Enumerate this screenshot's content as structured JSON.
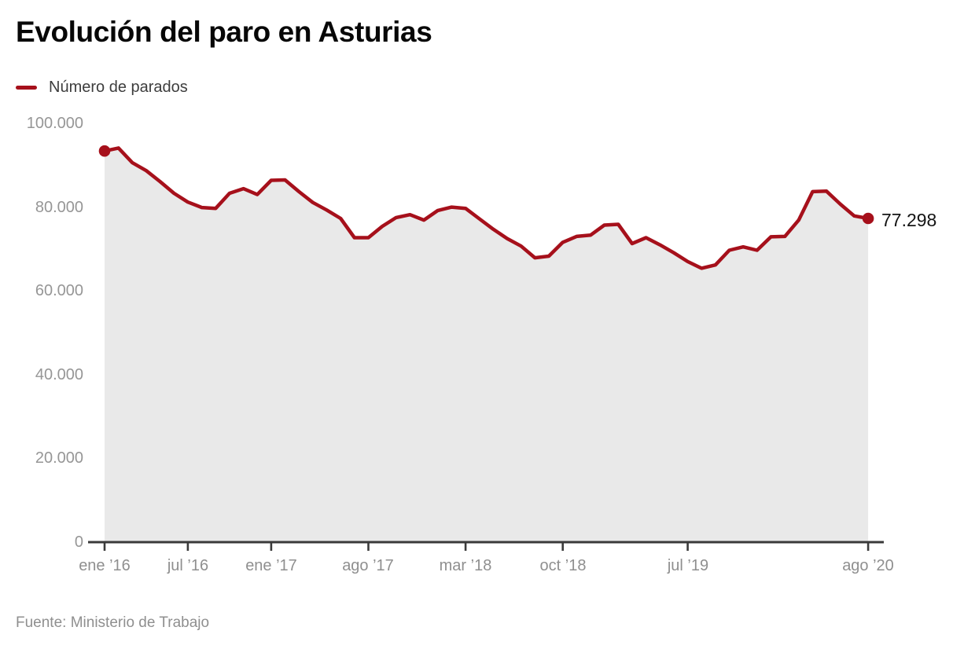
{
  "chart_data": {
    "type": "area",
    "title": "Evolución del paro en Asturias",
    "x": [
      "ene ’16",
      "feb ’16",
      "mar ’16",
      "abr ’16",
      "may ’16",
      "jun ’16",
      "jul ’16",
      "ago ’16",
      "sep ’16",
      "oct ’16",
      "nov ’16",
      "dic ’16",
      "ene ’17",
      "feb ’17",
      "mar ’17",
      "abr ’17",
      "may ’17",
      "jun ’17",
      "jul ’17",
      "ago ’17",
      "sep ’17",
      "oct ’17",
      "nov ’17",
      "dic ’17",
      "ene ’18",
      "feb ’18",
      "mar ’18",
      "abr ’18",
      "may ’18",
      "jun ’18",
      "jul ’18",
      "ago ’18",
      "sep ’18",
      "oct ’18",
      "nov ’18",
      "dic ’18",
      "ene ’19",
      "feb ’19",
      "mar ’19",
      "abr ’19",
      "may ’19",
      "jun ’19",
      "jul ’19",
      "ago ’19",
      "sep ’19",
      "oct ’19",
      "nov ’19",
      "dic ’19",
      "ene ’20",
      "feb ’20",
      "mar ’20",
      "abr ’20",
      "may ’20",
      "jun ’20",
      "jul ’20",
      "ago ’20"
    ],
    "series": [
      {
        "name": "Número de parados",
        "values": [
          93400,
          94100,
          90600,
          88700,
          86100,
          83300,
          81200,
          79900,
          79700,
          83300,
          84400,
          83000,
          86400,
          86500,
          83700,
          81100,
          79300,
          77300,
          72700,
          72700,
          75400,
          77500,
          78200,
          76900,
          79200,
          80000,
          79700,
          77200,
          74700,
          72500,
          70700,
          67900,
          68300,
          71600,
          73000,
          73300,
          75700,
          75900,
          71300,
          72700,
          71000,
          69100,
          67000,
          65400,
          66200,
          69700,
          70500,
          69700,
          72900,
          73000,
          76900,
          83700,
          83800,
          80700,
          77900,
          77298
        ]
      }
    ],
    "ylim": [
      0,
      100000
    ],
    "yticks": {
      "values": [
        0,
        20000,
        40000,
        60000,
        80000,
        100000
      ],
      "labels": [
        "0",
        "20.000",
        "40.000",
        "60.000",
        "80.000",
        "100.000"
      ]
    },
    "xticks": [
      {
        "index": 0,
        "label": "ene ’16"
      },
      {
        "index": 6,
        "label": "jul ’16"
      },
      {
        "index": 12,
        "label": "ene ’17"
      },
      {
        "index": 19,
        "label": "ago ’17"
      },
      {
        "index": 26,
        "label": "mar ’18"
      },
      {
        "index": 33,
        "label": "oct ’18"
      },
      {
        "index": 42,
        "label": "jul ’19"
      },
      {
        "index": 55,
        "label": "ago ’20"
      }
    ],
    "end_annotation": "77.298",
    "grid": false,
    "legend_position": "top-left"
  },
  "source": "Fuente: Ministerio de Trabajo",
  "colors": {
    "line": "#a6101b",
    "area": "#e9e9e9",
    "axis": "#3a3a3a",
    "axis_text": "#8f8f8f",
    "title_text": "#070707",
    "annotation_text": "#141414"
  }
}
